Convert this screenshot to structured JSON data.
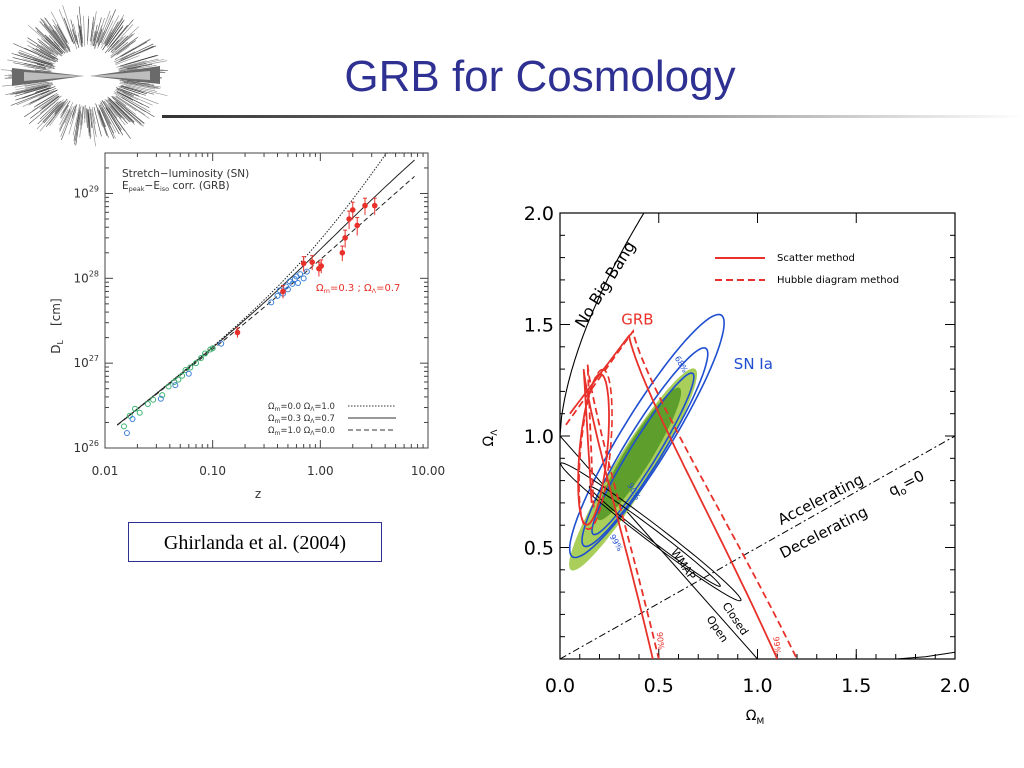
{
  "slide": {
    "title": "GRB for Cosmology",
    "citation": "Ghirlanda et al. (2004)"
  },
  "colors": {
    "title": "#2e3192",
    "grb_red": "#e8312a",
    "sn_blue": "#1f4fd0",
    "sn_fill_outer": "#a9cf5a",
    "sn_fill_inner": "#5e9e2c",
    "sn_points": "#3b7fd6",
    "low_z_points": "#3cb371"
  },
  "chart_data": [
    {
      "type": "scatter",
      "xlabel": "z",
      "ylabel_main": "D",
      "ylabel_sub": "L",
      "ylabel_unit": "[cm]",
      "x_scale": "log",
      "y_scale": "log",
      "xlim": [
        0.01,
        10.0
      ],
      "ylim": [
        1e+26,
        3e+29
      ],
      "x_ticks": [
        "0.01",
        "0.10",
        "1.00",
        "10.00"
      ],
      "y_ticks": [
        {
          "base": "10",
          "exp": "26"
        },
        {
          "base": "10",
          "exp": "27"
        },
        {
          "base": "10",
          "exp": "28"
        },
        {
          "base": "10",
          "exp": "29"
        }
      ],
      "legend_top": {
        "line1": "Stretch−luminosity (SN)",
        "line2_a": "E",
        "line2_a_sub": "peak",
        "line2_b": "−E",
        "line2_b_sub": "iso",
        "line2_c": " corr. (GRB)"
      },
      "annotation": {
        "text": "Ω",
        "sub": "m",
        "mid": "=0.3 ; Ω",
        "sub2": "Λ",
        "end": "=0.7",
        "x": 1.15,
        "y": 1e+28
      },
      "models": [
        {
          "label": "Ω",
          "sub": "m",
          "mid": "=0.0 Ω",
          "sub2": "Λ",
          "end": "=1.0",
          "style": "dotted",
          "omega_m": 0.0,
          "omega_l": 1.0
        },
        {
          "label": "Ω",
          "sub": "m",
          "mid": "=0.3 Ω",
          "sub2": "Λ",
          "end": "=0.7",
          "style": "solid",
          "omega_m": 0.3,
          "omega_l": 0.7
        },
        {
          "label": "Ω",
          "sub": "m",
          "mid": "=1.0 Ω",
          "sub2": "Λ",
          "end": "=0.0",
          "style": "dashed",
          "omega_m": 1.0,
          "omega_l": 0.0
        }
      ],
      "series": [
        {
          "kind": "SN low-z",
          "points": [
            [
              0.015,
              1.8e+26
            ],
            [
              0.017,
              2.4e+26
            ],
            [
              0.019,
              2.9e+26
            ],
            [
              0.021,
              2.6e+26
            ],
            [
              0.025,
              3.3e+26
            ],
            [
              0.028,
              3.7e+26
            ],
            [
              0.034,
              4.2e+26
            ],
            [
              0.039,
              5.3e+26
            ],
            [
              0.044,
              6e+26
            ],
            [
              0.048,
              6.4e+26
            ],
            [
              0.052,
              7.1e+26
            ],
            [
              0.056,
              8.3e+26
            ],
            [
              0.062,
              8.9e+26
            ],
            [
              0.07,
              1e+27
            ],
            [
              0.078,
              1.15e+27
            ],
            [
              0.085,
              1.3e+27
            ],
            [
              0.095,
              1.45e+27
            ],
            [
              0.1,
              1.5e+27
            ]
          ]
        },
        {
          "kind": "SN high-z",
          "points": [
            [
              0.016,
              1.5e+26
            ],
            [
              0.018,
              2.2e+26
            ],
            [
              0.033,
              3.8e+26
            ],
            [
              0.045,
              5.5e+26
            ],
            [
              0.06,
              7.5e+26
            ],
            [
              0.12,
              1.7e+27
            ],
            [
              0.35,
              5.2e+27
            ],
            [
              0.4,
              6.2e+27
            ],
            [
              0.42,
              7.2e+27
            ],
            [
              0.45,
              6.6e+27
            ],
            [
              0.48,
              8e+27
            ],
            [
              0.5,
              7.4e+27
            ],
            [
              0.52,
              9.2e+27
            ],
            [
              0.55,
              8.6e+27
            ],
            [
              0.58,
              9.8e+27
            ],
            [
              0.6,
              1.05e+28
            ],
            [
              0.62,
              8.8e+27
            ],
            [
              0.65,
              1.12e+28
            ],
            [
              0.7,
              1e+28
            ],
            [
              0.75,
              1.2e+28
            ]
          ]
        },
        {
          "kind": "GRB",
          "points": [
            [
              0.17,
              2.3e+27,
              3e+26
            ],
            [
              0.45,
              7e+27,
              1.2e+27
            ],
            [
              0.7,
              1.5e+28,
              3e+27
            ],
            [
              0.84,
              1.55e+28,
              3e+27
            ],
            [
              0.97,
              1.3e+28,
              2.5e+27
            ],
            [
              1.02,
              1.4e+28,
              2.5e+27
            ],
            [
              1.6,
              2e+28,
              4e+27
            ],
            [
              1.7,
              3e+28,
              7e+27
            ],
            [
              1.85,
              5e+28,
              1.2e+28
            ],
            [
              2.0,
              6.4e+28,
              1.5e+28
            ],
            [
              2.2,
              4.2e+28,
              1e+28
            ],
            [
              2.6,
              7.2e+28,
              1.6e+28
            ],
            [
              3.2,
              7.2e+28,
              1.6e+28
            ]
          ]
        }
      ]
    },
    {
      "type": "contour",
      "xlabel": "Ω",
      "xlabel_sub": "M",
      "ylabel": "Ω",
      "ylabel_sub": "Λ",
      "xlim": [
        0.0,
        2.0
      ],
      "ylim": [
        0.0,
        2.0
      ],
      "x_ticks": [
        "0.0",
        "0.5",
        "1.0",
        "1.5",
        "2.0"
      ],
      "y_ticks": [
        "0.5",
        "1.0",
        "1.5",
        "2.0"
      ],
      "legend": [
        {
          "label": "Scatter method",
          "style": "solid"
        },
        {
          "label": "Hubble diagram method",
          "style": "dashed"
        }
      ],
      "labels": {
        "no_big_bang": "No Big Bang",
        "grb": "GRB",
        "sn": "SN Ia",
        "accelerating": "Accelerating",
        "decelerating": "Decelerating",
        "q0_main": "q",
        "q0_sub": "o",
        "q0_end": "=0",
        "wmap": "WMAP",
        "closed": "Closed",
        "open": "Open",
        "c68": "68%",
        "c90": "90%",
        "c99": "99%",
        "g90": "90%",
        "g99": "99%"
      }
    }
  ]
}
